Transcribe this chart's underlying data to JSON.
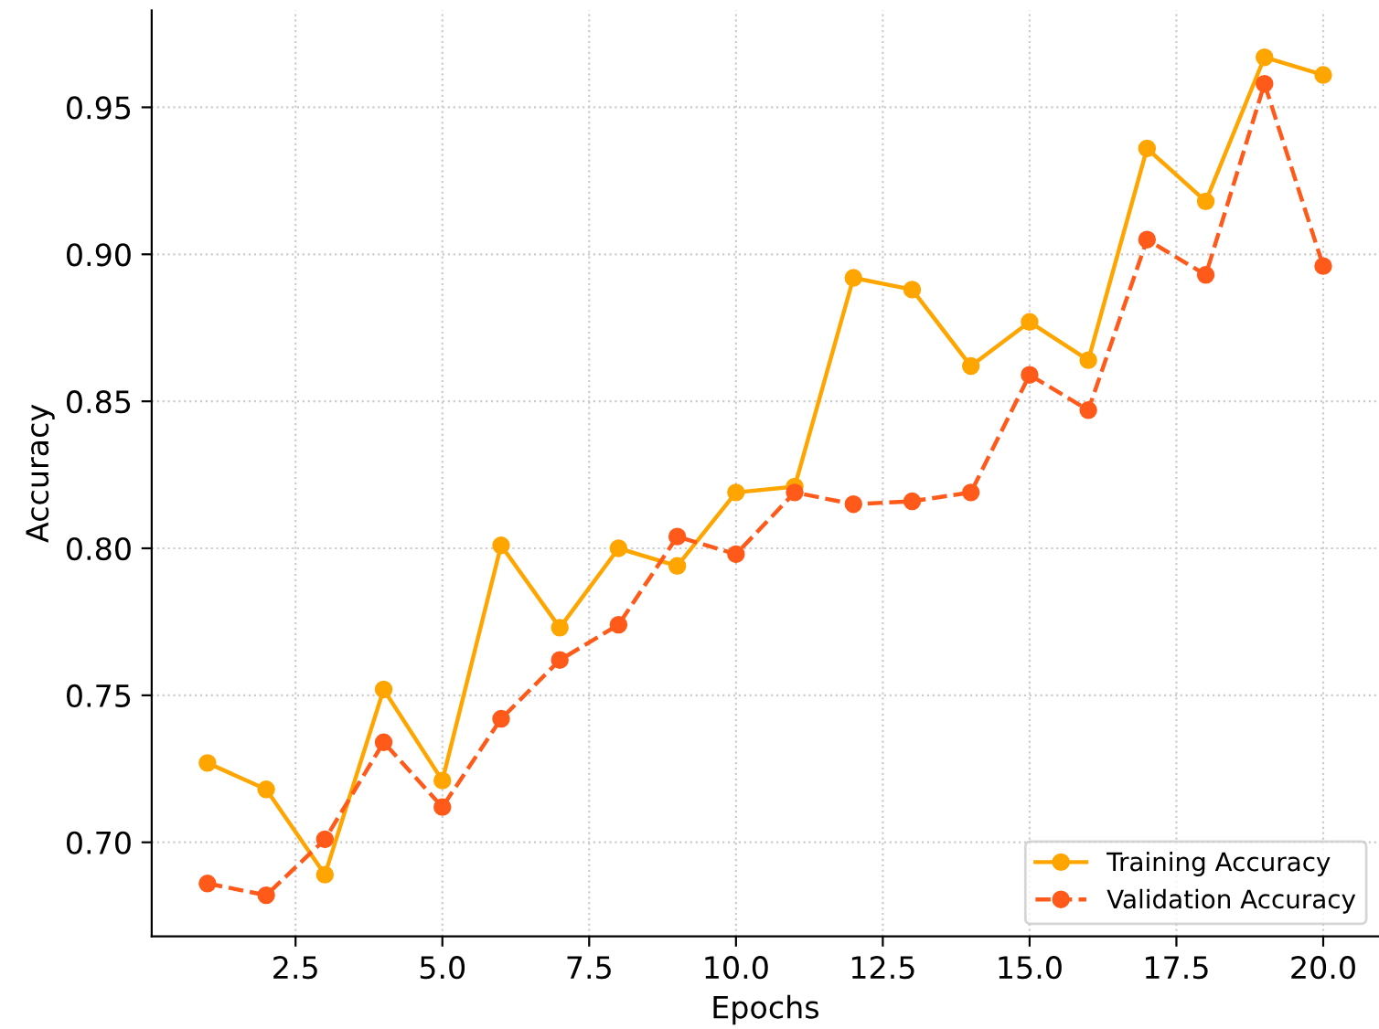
{
  "chart_data": {
    "type": "line",
    "xlabel": "Epochs",
    "ylabel": "Accuracy",
    "x": [
      1,
      2,
      3,
      4,
      5,
      6,
      7,
      8,
      9,
      10,
      11,
      12,
      13,
      14,
      15,
      16,
      17,
      18,
      19,
      20
    ],
    "series": [
      {
        "name": "Training Accuracy",
        "color": "#ffa500",
        "line_style": "solid",
        "values": [
          0.727,
          0.718,
          0.689,
          0.752,
          0.721,
          0.801,
          0.773,
          0.8,
          0.794,
          0.819,
          0.821,
          0.892,
          0.888,
          0.862,
          0.877,
          0.864,
          0.936,
          0.918,
          0.967,
          0.961
        ]
      },
      {
        "name": "Validation Accuracy",
        "color": "#ff5a1a",
        "line_style": "dashed",
        "values": [
          0.686,
          0.682,
          0.701,
          0.734,
          0.712,
          0.742,
          0.762,
          0.774,
          0.804,
          0.798,
          0.819,
          0.815,
          0.816,
          0.819,
          0.859,
          0.847,
          0.905,
          0.893,
          0.958,
          0.896
        ]
      }
    ],
    "xlim": [
      0.05,
      20.95
    ],
    "ylim": [
      0.668,
      0.983
    ],
    "xticks": [
      {
        "value": 2.5,
        "label": "2.5"
      },
      {
        "value": 5,
        "label": "5.0"
      },
      {
        "value": 7.5,
        "label": "7.5"
      },
      {
        "value": 10,
        "label": "10.0"
      },
      {
        "value": 12.5,
        "label": "12.5"
      },
      {
        "value": 15,
        "label": "15.0"
      },
      {
        "value": 17.5,
        "label": "17.5"
      },
      {
        "value": 20,
        "label": "20.0"
      }
    ],
    "yticks": [
      {
        "value": 0.7,
        "label": "0.70"
      },
      {
        "value": 0.75,
        "label": "0.75"
      },
      {
        "value": 0.8,
        "label": "0.80"
      },
      {
        "value": 0.85,
        "label": "0.85"
      },
      {
        "value": 0.9,
        "label": "0.90"
      },
      {
        "value": 0.95,
        "label": "0.95"
      }
    ],
    "grid": true,
    "legend": "lower right",
    "marker": "circle"
  }
}
